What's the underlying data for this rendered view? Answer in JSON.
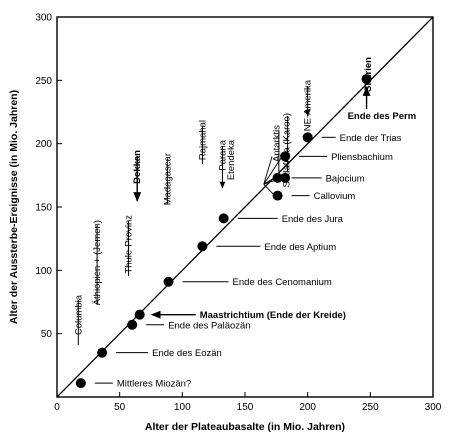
{
  "chart_data": {
    "type": "scatter",
    "xlabel": "Alter der Plateaubasalte (in Mio. Jahren)",
    "ylabel": "Alter der Aussterbe-Ereignisse (in Mio. Jahren)",
    "xlim": [
      0,
      300
    ],
    "ylim": [
      0,
      300
    ],
    "xticks": [
      0,
      50,
      100,
      150,
      200,
      250,
      300
    ],
    "yticks": [
      50,
      100,
      150,
      200,
      250,
      300
    ],
    "reference_line": "1:1",
    "grid": false,
    "province_labels": [
      {
        "text": "Columbia",
        "x": 17,
        "bold": false
      },
      {
        "text": "Äthiopien + (Jemen)",
        "x": 32,
        "bold": false
      },
      {
        "text": "Thule-Provinz",
        "x": 57,
        "bold": false
      },
      {
        "text": "Dekkan",
        "x": 64,
        "bold": true
      },
      {
        "text": "Madagascar",
        "x": 88,
        "bold": false
      },
      {
        "text": "Rajmahal",
        "x": 116,
        "bold": false
      },
      {
        "text": "Parana",
        "x": 132,
        "bold": false
      },
      {
        "text": "Etendeka",
        "x": 139,
        "bold": false
      },
      {
        "text": "Antarktis",
        "x": 175,
        "bold": false
      },
      {
        "text": "Südafrika (Karoo)",
        "x": 183,
        "bold": false
      },
      {
        "text": "NE-Amerika",
        "x": 200,
        "bold": false
      },
      {
        "text": "Sibirien",
        "x": 248,
        "bold": true
      }
    ],
    "points": [
      {
        "x": 19,
        "y": 11,
        "label": "Mittleres Miozän?",
        "bold": false
      },
      {
        "x": 36,
        "y": 35,
        "label": "Ende des Eozän",
        "bold": false
      },
      {
        "x": 60,
        "y": 57,
        "label": "Ende des Paläozän",
        "bold": false
      },
      {
        "x": 66,
        "y": 65,
        "label": "Maastrichtium (Ende der Kreide)",
        "bold": true
      },
      {
        "x": 89,
        "y": 91,
        "label": "Ende des Cenomanium",
        "bold": false
      },
      {
        "x": 116,
        "y": 119,
        "label": "Ende des Aptium",
        "bold": false
      },
      {
        "x": 133,
        "y": 141,
        "label": "Ende des Jura",
        "bold": false
      },
      {
        "x": 176,
        "y": 159,
        "label": "Callovium",
        "bold": false
      },
      {
        "x": 176,
        "y": 173,
        "label": "Bajocium",
        "bold": false
      },
      {
        "x": 182,
        "y": 173,
        "label": "",
        "bold": false
      },
      {
        "x": 182,
        "y": 190,
        "label": "Pliensbachium",
        "bold": false
      },
      {
        "x": 200,
        "y": 205,
        "label": "Ende der Trias",
        "bold": false
      },
      {
        "x": 247,
        "y": 251,
        "label": "",
        "bold": false
      }
    ],
    "annotation": {
      "text": "Ende des Perm",
      "bold": true
    }
  }
}
